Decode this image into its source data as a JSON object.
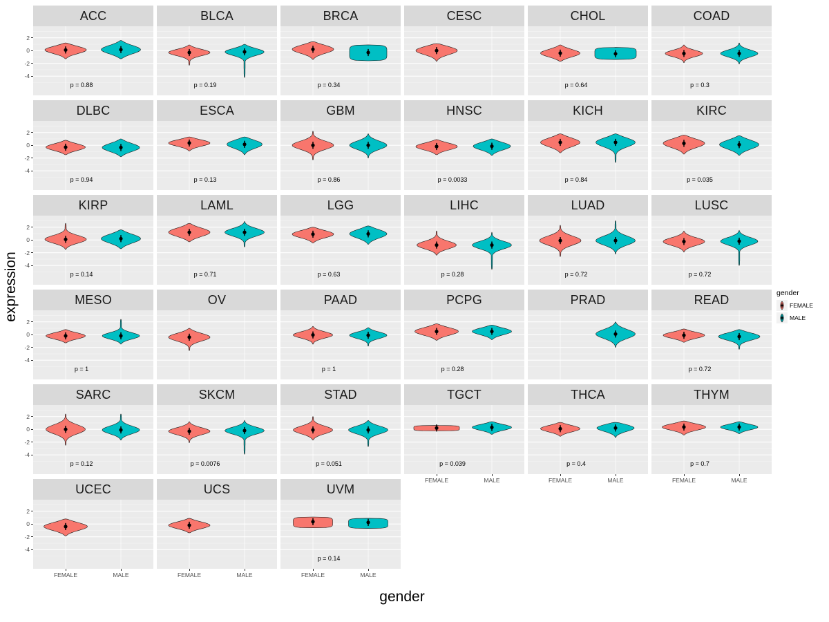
{
  "figure": {
    "bg": "#FFFFFF",
    "panel_bg": "#EBEBEB",
    "strip_bg": "#D9D9D9",
    "grid_major_color": "#FFFFFF",
    "grid_minor_color": "#F5F5F5",
    "female_color": "#F8766D",
    "male_color": "#00BFC4",
    "x_label": "gender",
    "y_label": "expression",
    "y_ticks": [
      2,
      0,
      -2,
      -4
    ],
    "x_tick_labels": [
      "FEMALE",
      "MALE"
    ]
  },
  "legend": {
    "title": "gender",
    "items": [
      {
        "label": "FEMALE",
        "color": "#F8766D"
      },
      {
        "label": "MALE",
        "color": "#00BFC4"
      }
    ]
  },
  "chart_data": {
    "type": "violin",
    "title": "",
    "xlabel": "gender",
    "ylabel": "expression",
    "ylim": [
      -5,
      3
    ],
    "grid": true,
    "legend_position": "right",
    "facets": [
      {
        "title": "ACC",
        "p": "p = 0.88",
        "groups": [
          {
            "g": "FEMALE",
            "c": 0.1,
            "lo": -1.3,
            "hi": 1.2,
            "w": 1
          },
          {
            "g": "MALE",
            "c": 0.15,
            "lo": -1.3,
            "hi": 1.6,
            "w": 0.95
          }
        ]
      },
      {
        "title": "BLCA",
        "p": "p = 0.19",
        "groups": [
          {
            "g": "FEMALE",
            "c": -0.3,
            "lo": -2.3,
            "hi": 0.9,
            "w": 1,
            "bs": 0.5
          },
          {
            "g": "MALE",
            "c": -0.2,
            "lo": -4.2,
            "hi": 1.0,
            "w": 0.95,
            "bs": 0.55
          }
        ]
      },
      {
        "title": "BRCA",
        "p": "p = 0.34",
        "groups": [
          {
            "g": "FEMALE",
            "c": 0.2,
            "lo": -1.4,
            "hi": 1.4,
            "w": 1
          },
          {
            "g": "MALE",
            "c": -0.3,
            "lo": -1.6,
            "hi": 0.9,
            "w": 0.9,
            "shape": "flat"
          }
        ]
      },
      {
        "title": "CESC",
        "p": null,
        "groups": [
          {
            "g": "FEMALE",
            "c": 0.0,
            "lo": -1.7,
            "hi": 1.1,
            "w": 1
          }
        ]
      },
      {
        "title": "CHOL",
        "p": "p = 0.64",
        "groups": [
          {
            "g": "FEMALE",
            "c": -0.4,
            "lo": -1.7,
            "hi": 0.9,
            "w": 0.95
          },
          {
            "g": "MALE",
            "c": -0.5,
            "lo": -1.4,
            "hi": 0.5,
            "w": 1,
            "shape": "flat"
          }
        ]
      },
      {
        "title": "COAD",
        "p": "p = 0.3",
        "groups": [
          {
            "g": "FEMALE",
            "c": -0.45,
            "lo": -1.9,
            "hi": 0.9,
            "w": 0.9,
            "bs": 0.5
          },
          {
            "g": "MALE",
            "c": -0.45,
            "lo": -2.1,
            "hi": 1.2,
            "w": 0.9,
            "bs": 0.55
          }
        ]
      },
      {
        "title": "DLBC",
        "p": "p = 0.94",
        "groups": [
          {
            "g": "FEMALE",
            "c": -0.3,
            "lo": -1.5,
            "hi": 0.8,
            "w": 0.95
          },
          {
            "g": "MALE",
            "c": -0.35,
            "lo": -1.8,
            "hi": 1.0,
            "w": 0.9
          }
        ]
      },
      {
        "title": "ESCA",
        "p": "p = 0.13",
        "groups": [
          {
            "g": "FEMALE",
            "c": 0.35,
            "lo": -0.9,
            "hi": 1.3,
            "w": 1
          },
          {
            "g": "MALE",
            "c": 0.15,
            "lo": -1.5,
            "hi": 1.3,
            "w": 0.85
          }
        ]
      },
      {
        "title": "GBM",
        "p": "p = 0.86",
        "groups": [
          {
            "g": "FEMALE",
            "c": 0.0,
            "lo": -2.3,
            "hi": 2.2,
            "w": 1,
            "bs": 0.65
          },
          {
            "g": "MALE",
            "c": 0.0,
            "lo": -2.0,
            "hi": 1.8,
            "w": 0.9,
            "bs": 0.65
          }
        ]
      },
      {
        "title": "HNSC",
        "p": "p = 0.0033",
        "groups": [
          {
            "g": "FEMALE",
            "c": -0.2,
            "lo": -1.5,
            "hi": 0.9,
            "w": 1
          },
          {
            "g": "MALE",
            "c": -0.15,
            "lo": -1.6,
            "hi": 1.0,
            "w": 0.9
          }
        ]
      },
      {
        "title": "KICH",
        "p": "p = 0.84",
        "groups": [
          {
            "g": "FEMALE",
            "c": 0.45,
            "lo": -1.2,
            "hi": 1.8,
            "w": 0.95
          },
          {
            "g": "MALE",
            "c": 0.45,
            "lo": -2.7,
            "hi": 1.8,
            "w": 0.95,
            "bs": 0.7
          }
        ]
      },
      {
        "title": "KIRC",
        "p": "p = 0.035",
        "groups": [
          {
            "g": "FEMALE",
            "c": 0.3,
            "lo": -1.4,
            "hi": 1.6,
            "w": 1
          },
          {
            "g": "MALE",
            "c": 0.1,
            "lo": -1.6,
            "hi": 1.5,
            "w": 0.95
          }
        ]
      },
      {
        "title": "KIRP",
        "p": "p = 0.14",
        "groups": [
          {
            "g": "FEMALE",
            "c": 0.1,
            "lo": -1.5,
            "hi": 2.6,
            "w": 1,
            "bs": 0.6
          },
          {
            "g": "MALE",
            "c": 0.2,
            "lo": -1.4,
            "hi": 1.6,
            "w": 0.95
          }
        ]
      },
      {
        "title": "LAML",
        "p": "p = 0.71",
        "groups": [
          {
            "g": "FEMALE",
            "c": 1.2,
            "lo": -0.3,
            "hi": 2.6,
            "w": 1
          },
          {
            "g": "MALE",
            "c": 1.2,
            "lo": -1.1,
            "hi": 2.9,
            "w": 0.95,
            "bs": 0.6
          }
        ]
      },
      {
        "title": "LGG",
        "p": "p = 0.63",
        "groups": [
          {
            "g": "FEMALE",
            "c": 0.9,
            "lo": -0.5,
            "hi": 2.0,
            "w": 1
          },
          {
            "g": "MALE",
            "c": 0.95,
            "lo": -0.7,
            "hi": 2.2,
            "w": 0.9
          }
        ]
      },
      {
        "title": "LIHC",
        "p": "p = 0.28",
        "groups": [
          {
            "g": "FEMALE",
            "c": -0.8,
            "lo": -2.4,
            "hi": 1.4,
            "w": 0.95,
            "bs": 0.6
          },
          {
            "g": "MALE",
            "c": -0.8,
            "lo": -4.6,
            "hi": 1.2,
            "w": 0.95,
            "bs": 0.6
          }
        ]
      },
      {
        "title": "LUAD",
        "p": "p = 0.72",
        "groups": [
          {
            "g": "FEMALE",
            "c": -0.1,
            "lo": -2.6,
            "hi": 2.3,
            "w": 1,
            "bs": 0.7
          },
          {
            "g": "MALE",
            "c": -0.1,
            "lo": -2.2,
            "hi": 3.0,
            "w": 0.95,
            "bs": 0.7
          }
        ]
      },
      {
        "title": "LUSC",
        "p": "p = 0.72",
        "groups": [
          {
            "g": "FEMALE",
            "c": -0.25,
            "lo": -1.9,
            "hi": 1.4,
            "w": 1,
            "bs": 0.6
          },
          {
            "g": "MALE",
            "c": -0.2,
            "lo": -4.0,
            "hi": 1.5,
            "w": 0.9,
            "bs": 0.6
          }
        ]
      },
      {
        "title": "MESO",
        "p": "p = 1",
        "groups": [
          {
            "g": "FEMALE",
            "c": -0.2,
            "lo": -1.3,
            "hi": 0.8,
            "w": 0.95
          },
          {
            "g": "MALE",
            "c": -0.2,
            "lo": -1.5,
            "hi": 2.4,
            "w": 0.9,
            "bs": 0.5
          }
        ]
      },
      {
        "title": "OV",
        "p": null,
        "groups": [
          {
            "g": "FEMALE",
            "c": -0.4,
            "lo": -2.5,
            "hi": 1.0,
            "w": 1,
            "bs": 0.6
          }
        ]
      },
      {
        "title": "PAAD",
        "p": "p = 1",
        "groups": [
          {
            "g": "FEMALE",
            "c": -0.05,
            "lo": -1.5,
            "hi": 1.3,
            "w": 0.95,
            "bs": 0.5
          },
          {
            "g": "MALE",
            "c": -0.1,
            "lo": -1.8,
            "hi": 1.1,
            "w": 0.9,
            "bs": 0.5
          }
        ]
      },
      {
        "title": "PCPG",
        "p": "p = 0.28",
        "groups": [
          {
            "g": "FEMALE",
            "c": 0.5,
            "lo": -0.9,
            "hi": 1.7,
            "w": 1.05
          },
          {
            "g": "MALE",
            "c": 0.5,
            "lo": -0.8,
            "hi": 1.5,
            "w": 0.95
          }
        ]
      },
      {
        "title": "PRAD",
        "p": null,
        "groups": [
          {
            "g": "MALE",
            "c": 0.1,
            "lo": -2.0,
            "hi": 2.0,
            "w": 0.95,
            "bs": 0.7
          }
        ]
      },
      {
        "title": "READ",
        "p": "p = 0.72",
        "groups": [
          {
            "g": "FEMALE",
            "c": -0.1,
            "lo": -1.2,
            "hi": 0.9,
            "w": 1
          },
          {
            "g": "MALE",
            "c": -0.3,
            "lo": -2.3,
            "hi": 0.8,
            "w": 1,
            "bs": 0.55
          }
        ]
      },
      {
        "title": "SARC",
        "p": "p = 0.12",
        "groups": [
          {
            "g": "FEMALE",
            "c": 0.0,
            "lo": -2.5,
            "hi": 2.4,
            "w": 0.95,
            "bs": 0.7
          },
          {
            "g": "MALE",
            "c": -0.1,
            "lo": -1.7,
            "hi": 2.4,
            "w": 0.9,
            "bs": 0.6
          }
        ]
      },
      {
        "title": "SKCM",
        "p": "p = 0.0076",
        "groups": [
          {
            "g": "FEMALE",
            "c": -0.3,
            "lo": -2.1,
            "hi": 1.2,
            "w": 1,
            "bs": 0.55
          },
          {
            "g": "MALE",
            "c": -0.2,
            "lo": -3.9,
            "hi": 1.4,
            "w": 0.95,
            "bs": 0.55
          }
        ]
      },
      {
        "title": "STAD",
        "p": "p = 0.051",
        "groups": [
          {
            "g": "FEMALE",
            "c": -0.1,
            "lo": -1.7,
            "hi": 2.0,
            "w": 0.95,
            "bs": 0.6
          },
          {
            "g": "MALE",
            "c": -0.1,
            "lo": -2.7,
            "hi": 1.4,
            "w": 0.95,
            "bs": 0.6
          }
        ]
      },
      {
        "title": "TGCT",
        "p": "p = 0.039",
        "groups": [
          {
            "g": "FEMALE",
            "c": 0.2,
            "lo": -0.25,
            "hi": 0.6,
            "w": 1.1,
            "shape": "flat"
          },
          {
            "g": "MALE",
            "c": 0.3,
            "lo": -0.8,
            "hi": 1.2,
            "w": 0.95
          }
        ]
      },
      {
        "title": "THCA",
        "p": "p = 0.4",
        "groups": [
          {
            "g": "FEMALE",
            "c": 0.1,
            "lo": -1.1,
            "hi": 1.1,
            "w": 0.95
          },
          {
            "g": "MALE",
            "c": 0.2,
            "lo": -1.3,
            "hi": 1.1,
            "w": 0.9
          }
        ]
      },
      {
        "title": "THYM",
        "p": "p = 0.7",
        "groups": [
          {
            "g": "FEMALE",
            "c": 0.35,
            "lo": -0.9,
            "hi": 1.3,
            "w": 1.05
          },
          {
            "g": "MALE",
            "c": 0.35,
            "lo": -0.7,
            "hi": 1.2,
            "w": 0.9
          }
        ]
      },
      {
        "title": "UCEC",
        "p": null,
        "groups": [
          {
            "g": "FEMALE",
            "c": -0.4,
            "lo": -1.9,
            "hi": 0.8,
            "w": 1.05
          }
        ]
      },
      {
        "title": "UCS",
        "p": null,
        "groups": [
          {
            "g": "FEMALE",
            "c": -0.2,
            "lo": -1.4,
            "hi": 0.9,
            "w": 1
          }
        ]
      },
      {
        "title": "UVM",
        "p": "p = 0.14",
        "groups": [
          {
            "g": "FEMALE",
            "c": 0.35,
            "lo": -0.6,
            "hi": 1.1,
            "w": 0.95,
            "shape": "flat"
          },
          {
            "g": "MALE",
            "c": 0.25,
            "lo": -0.7,
            "hi": 0.9,
            "w": 0.95,
            "shape": "flat"
          }
        ]
      }
    ]
  }
}
